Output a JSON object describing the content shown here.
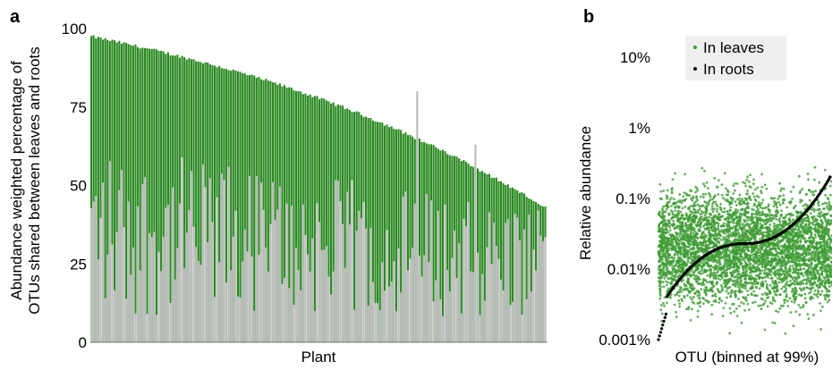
{
  "panel_a_letter": "a",
  "panel_b_letter": "b",
  "chart_data": [
    {
      "type": "bar",
      "panel": "a",
      "stacked_overlay": true,
      "xlabel": "Plant",
      "ylabel_line1": "Abundance weighted percentage of",
      "ylabel_line2": "OTUs shared between leaves and roots",
      "ylim": [
        0,
        100
      ],
      "yticks": [
        "0",
        "25",
        "50",
        "75",
        "100"
      ],
      "n_plants": 196,
      "series": [
        {
          "name": "",
          "color": "#2a8a22",
          "description": "shared fraction (green), sorted descending",
          "start": 97.5,
          "end": 43,
          "shape": "decreasing"
        },
        {
          "name": "",
          "color": "#bdbdbd",
          "description": "overlaid grey bars, range roughly 0-80",
          "highlight_values": [
            {
              "plant_index": 140,
              "value": 80
            },
            {
              "plant_index": 165,
              "value": 63
            },
            {
              "plant_index": 192,
              "value": 42
            }
          ]
        }
      ],
      "colors": {
        "green": "#2a8a22",
        "grey": "#bdbdbd"
      }
    },
    {
      "type": "scatter",
      "panel": "b",
      "xlabel": "OTU (binned at 99%)",
      "ylabel": "Relative abundance",
      "yscale": "log",
      "ylim": [
        0.001,
        20
      ],
      "yticks": [
        "0.001%",
        "0.01%",
        "0.1%",
        "1%",
        "10%"
      ],
      "ytick_values": [
        0.001,
        0.01,
        0.1,
        1,
        10
      ],
      "legend": {
        "position": "top-left",
        "entries": [
          {
            "label": "In leaves",
            "color": "#3f9c35"
          },
          {
            "label": "In roots",
            "color": "#000000"
          }
        ]
      },
      "series": [
        {
          "name": "In leaves",
          "color": "#3f9c35",
          "description": "dense cloud, approx 0.001%–3%, centre ~0.02%",
          "n_points_approx": 4500
        },
        {
          "name": "In roots",
          "color": "#000000",
          "description": "sorted curve rising from 0.001% to ~0.2%",
          "start": 0.001,
          "end": 0.2
        }
      ]
    }
  ]
}
